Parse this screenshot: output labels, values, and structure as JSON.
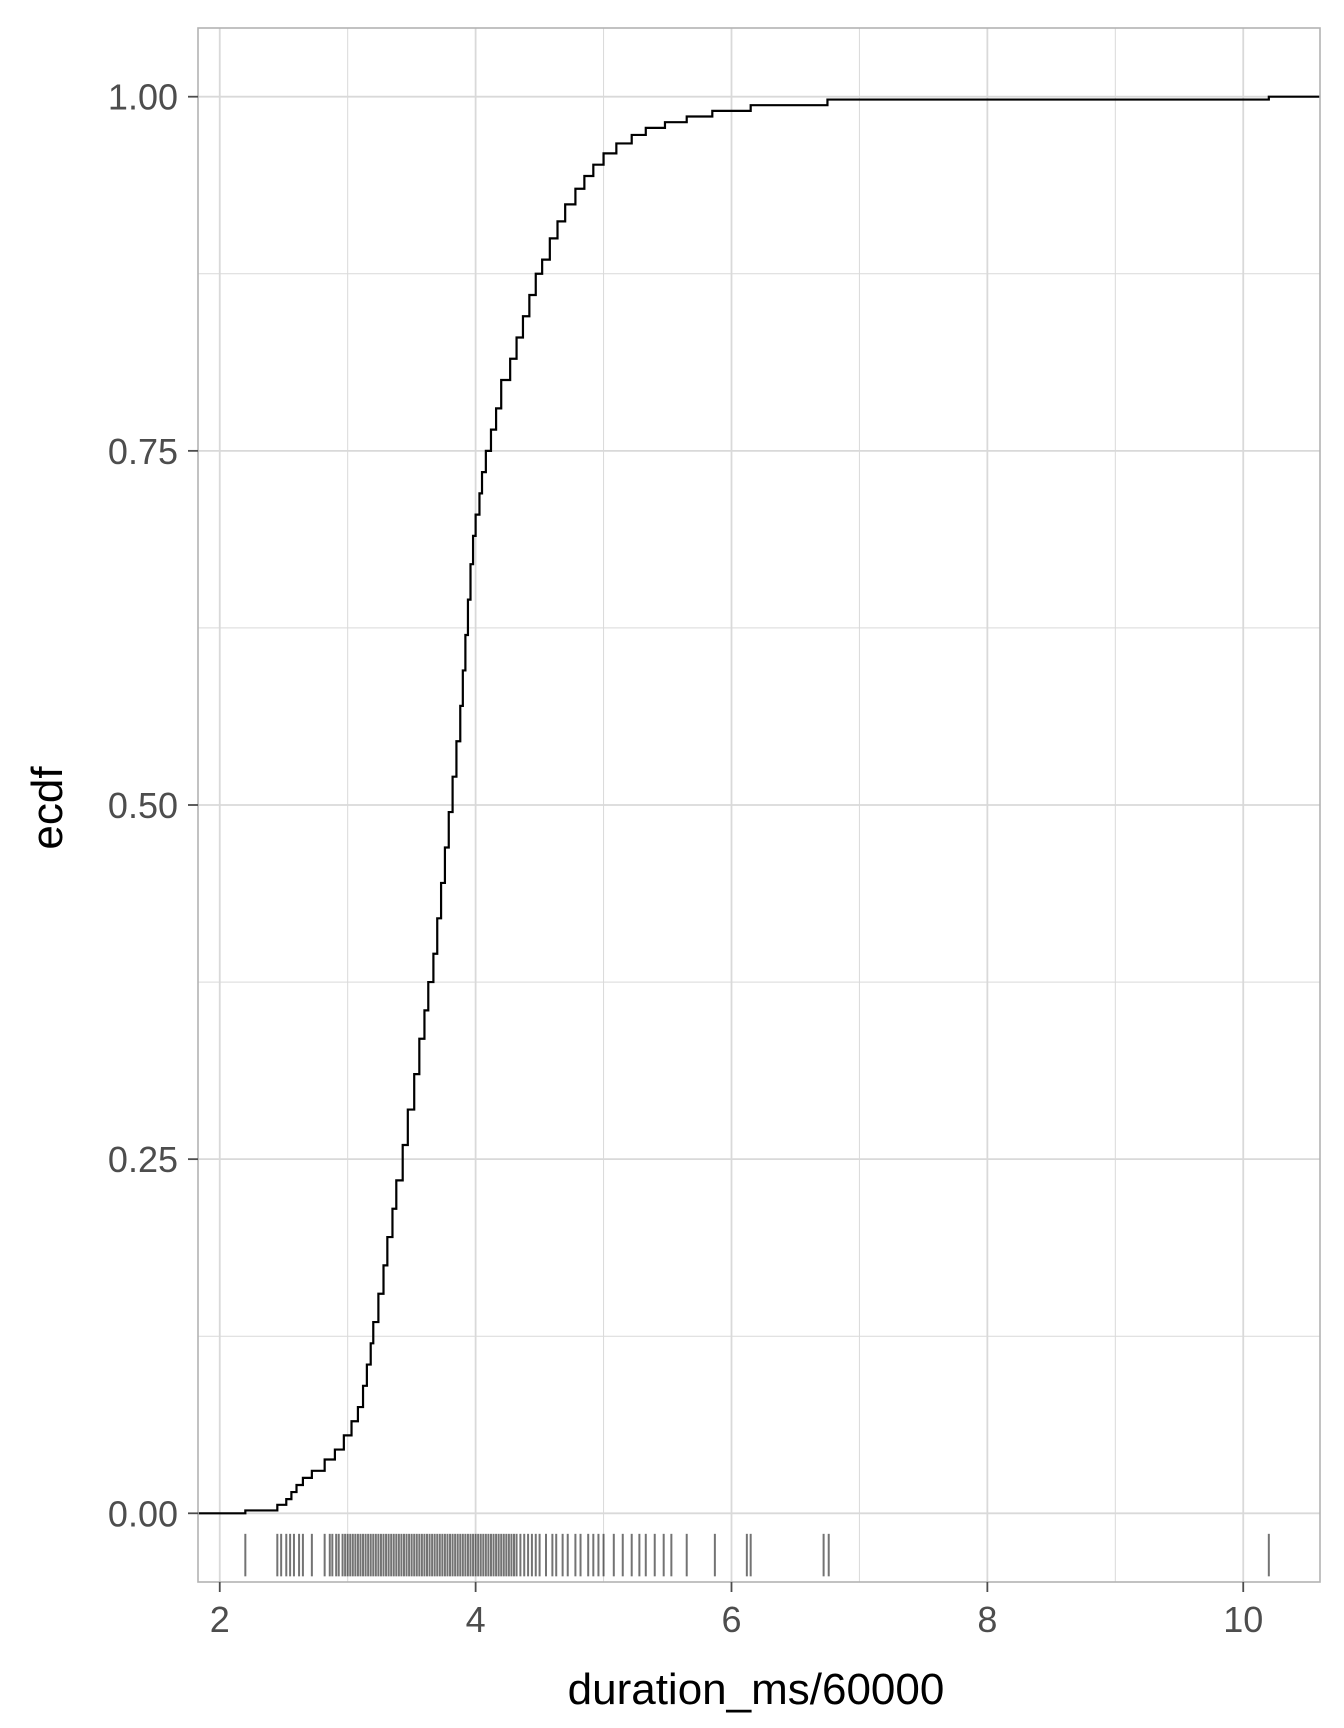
{
  "chart_data": {
    "type": "line",
    "subtype": "ecdf-step-with-rug",
    "xlabel": "duration_ms/60000",
    "ylabel": "ecdf",
    "xlim": [
      1.83,
      10.6
    ],
    "ylim": [
      -0.0485,
      1.0485
    ],
    "x_ticks": [
      2,
      4,
      6,
      8,
      10
    ],
    "x_tick_labels": [
      "2",
      "4",
      "6",
      "8",
      "10"
    ],
    "y_ticks": [
      0,
      0.25,
      0.5,
      0.75,
      1
    ],
    "y_tick_labels": [
      "0.00",
      "0.25",
      "0.50",
      "0.75",
      "1.00"
    ],
    "grid": true,
    "colors": {
      "line": "#000000",
      "grid": "#d9d9d9",
      "border": "#b3b3b3",
      "rug": "#000000"
    },
    "series": [
      {
        "x": [
          2.2,
          2.45,
          2.52,
          2.56,
          2.6,
          2.65,
          2.72,
          2.82,
          2.9,
          2.97,
          3.03,
          3.08,
          3.12,
          3.15,
          3.18,
          3.2,
          3.24,
          3.28,
          3.31,
          3.35,
          3.38,
          3.43,
          3.47,
          3.52,
          3.56,
          3.6,
          3.63,
          3.67,
          3.7,
          3.73,
          3.76,
          3.79,
          3.82,
          3.85,
          3.88,
          3.9,
          3.92,
          3.94,
          3.96,
          3.98,
          4.0,
          4.03,
          4.05,
          4.08,
          4.12,
          4.16,
          4.2,
          4.27,
          4.32,
          4.37,
          4.42,
          4.47,
          4.52,
          4.58,
          4.64,
          4.7,
          4.78,
          4.85,
          4.92,
          5.0,
          5.1,
          5.22,
          5.33,
          5.48,
          5.65,
          5.85,
          6.15,
          6.75,
          10.2
        ],
        "y": [
          0.002,
          0.006,
          0.01,
          0.015,
          0.02,
          0.025,
          0.03,
          0.038,
          0.045,
          0.055,
          0.065,
          0.075,
          0.09,
          0.105,
          0.12,
          0.135,
          0.155,
          0.175,
          0.195,
          0.215,
          0.235,
          0.26,
          0.285,
          0.31,
          0.335,
          0.355,
          0.375,
          0.395,
          0.42,
          0.445,
          0.47,
          0.495,
          0.52,
          0.545,
          0.57,
          0.595,
          0.62,
          0.645,
          0.67,
          0.69,
          0.705,
          0.72,
          0.735,
          0.75,
          0.765,
          0.78,
          0.8,
          0.815,
          0.83,
          0.845,
          0.86,
          0.875,
          0.885,
          0.9,
          0.912,
          0.924,
          0.935,
          0.944,
          0.952,
          0.96,
          0.967,
          0.973,
          0.978,
          0.982,
          0.986,
          0.99,
          0.994,
          0.998,
          1.0
        ]
      }
    ],
    "rug_x": [
      2.2,
      2.45,
      2.48,
      2.52,
      2.55,
      2.58,
      2.62,
      2.65,
      2.72,
      2.82,
      2.86,
      2.88,
      2.91,
      2.93,
      2.96,
      2.98,
      3.0,
      3.02,
      3.04,
      3.06,
      3.08,
      3.1,
      3.12,
      3.14,
      3.16,
      3.18,
      3.2,
      3.22,
      3.24,
      3.26,
      3.28,
      3.3,
      3.32,
      3.34,
      3.36,
      3.38,
      3.4,
      3.42,
      3.44,
      3.46,
      3.48,
      3.5,
      3.52,
      3.54,
      3.56,
      3.58,
      3.6,
      3.62,
      3.64,
      3.66,
      3.68,
      3.7,
      3.72,
      3.74,
      3.76,
      3.78,
      3.8,
      3.82,
      3.84,
      3.86,
      3.88,
      3.9,
      3.92,
      3.94,
      3.96,
      3.98,
      4.0,
      4.02,
      4.04,
      4.06,
      4.08,
      4.1,
      4.12,
      4.14,
      4.16,
      4.18,
      4.2,
      4.22,
      4.24,
      4.26,
      4.28,
      4.3,
      4.32,
      4.35,
      4.38,
      4.41,
      4.44,
      4.47,
      4.5,
      4.55,
      4.6,
      4.63,
      4.68,
      4.72,
      4.78,
      4.82,
      4.88,
      4.92,
      4.96,
      5.0,
      5.08,
      5.15,
      5.22,
      5.28,
      5.33,
      5.4,
      5.47,
      5.53,
      5.65,
      5.87,
      6.12,
      6.15,
      6.72,
      6.76,
      10.2
    ]
  }
}
